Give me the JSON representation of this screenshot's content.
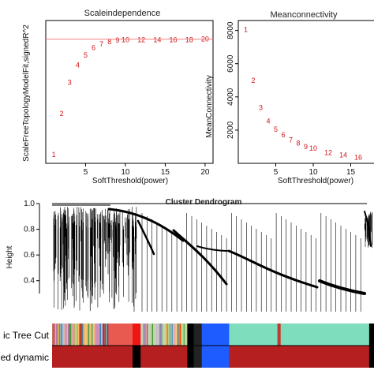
{
  "chart_data": [
    {
      "type": "scatter",
      "title": "Scaleindependence",
      "xlabel": "SoftThreshold(power)",
      "ylabel": "ScaleFreeTopologyModelFit,signedR^2",
      "xlim": [
        0,
        21
      ],
      "ylim": [
        -0.15,
        1.0
      ],
      "xticks": [
        5,
        10,
        15,
        20
      ],
      "threshold_line": 0.85,
      "threshold_color": "#f08080",
      "point_color": "#d0161c",
      "x": [
        1,
        2,
        3,
        4,
        5,
        6,
        7,
        8,
        9,
        10,
        12,
        14,
        16,
        18,
        20
      ],
      "y": [
        -0.08,
        0.25,
        0.5,
        0.64,
        0.72,
        0.78,
        0.81,
        0.83,
        0.84,
        0.845,
        0.845,
        0.845,
        0.845,
        0.845,
        0.85
      ],
      "labels": [
        "1",
        "2",
        "3",
        "4",
        "5",
        "6",
        "7",
        "8",
        "9",
        "10",
        "12",
        "14",
        "16",
        "18",
        "20"
      ]
    },
    {
      "type": "scatter",
      "title": "Meanconnectivity",
      "xlabel": "SoftThreshold(power)",
      "ylabel": "MeanConnectivity",
      "xlim": [
        0,
        20
      ],
      "ylim": [
        0,
        8600
      ],
      "xticks": [
        5,
        10,
        15
      ],
      "yticks": [
        2000,
        4000,
        6000,
        8000
      ],
      "point_color": "#d0161c",
      "x": [
        1,
        2,
        3,
        4,
        5,
        6,
        7,
        8,
        9,
        10,
        12,
        14,
        16
      ],
      "y": [
        8050,
        5000,
        3350,
        2550,
        2050,
        1700,
        1400,
        1200,
        1000,
        900,
        650,
        500,
        350
      ],
      "labels": [
        "1",
        "2",
        "3",
        "4",
        "5",
        "6",
        "7",
        "8",
        "9",
        "10",
        "12",
        "14",
        "16"
      ]
    },
    {
      "type": "dendrogram",
      "title": "Cluster Dendrogram",
      "ylabel": "Height",
      "ylim": [
        0.3,
        1.0
      ],
      "yticks": [
        0.4,
        0.6,
        0.8,
        1.0
      ],
      "color_rows": [
        {
          "label": "Dynamic Tree Cut",
          "segments": [
            {
              "start": 0.0,
              "end": 0.06,
              "color": "#8e6fb0"
            },
            {
              "start": 0.06,
              "end": 0.1,
              "color": "#c9a26b"
            },
            {
              "start": 0.1,
              "end": 0.13,
              "color": "#f4c27a"
            },
            {
              "start": 0.13,
              "end": 0.155,
              "color": "#cf8fb7"
            },
            {
              "start": 0.155,
              "end": 0.175,
              "color": "#7f3f7f"
            },
            {
              "start": 0.175,
              "end": 0.25,
              "color": "#e85a50"
            },
            {
              "start": 0.25,
              "end": 0.275,
              "color": "#ef1515"
            },
            {
              "start": 0.275,
              "end": 0.42,
              "color": "#c4d3a8"
            },
            {
              "start": 0.42,
              "end": 0.44,
              "color": "#000000"
            },
            {
              "start": 0.44,
              "end": 0.465,
              "color": "#222222"
            },
            {
              "start": 0.465,
              "end": 0.55,
              "color": "#1f5cff"
            },
            {
              "start": 0.55,
              "end": 0.7,
              "color": "#7eddbd"
            },
            {
              "start": 0.7,
              "end": 0.71,
              "color": "#c0392b"
            },
            {
              "start": 0.71,
              "end": 0.985,
              "color": "#7eddbd"
            },
            {
              "start": 0.985,
              "end": 1.0,
              "color": "#000000"
            }
          ]
        },
        {
          "label": "Merged dynamic",
          "segments": [
            {
              "start": 0.0,
              "end": 0.25,
              "color": "#b51f1f"
            },
            {
              "start": 0.25,
              "end": 0.275,
              "color": "#000000"
            },
            {
              "start": 0.275,
              "end": 0.42,
              "color": "#b51f1f"
            },
            {
              "start": 0.42,
              "end": 0.44,
              "color": "#000000"
            },
            {
              "start": 0.44,
              "end": 0.465,
              "color": "#222222"
            },
            {
              "start": 0.465,
              "end": 0.55,
              "color": "#1f5cff"
            },
            {
              "start": 0.55,
              "end": 0.985,
              "color": "#b51f1f"
            },
            {
              "start": 0.985,
              "end": 1.0,
              "color": "#000000"
            }
          ]
        }
      ],
      "row_label_visible": [
        "ic Tree Cut",
        "ed dynamic"
      ]
    }
  ]
}
